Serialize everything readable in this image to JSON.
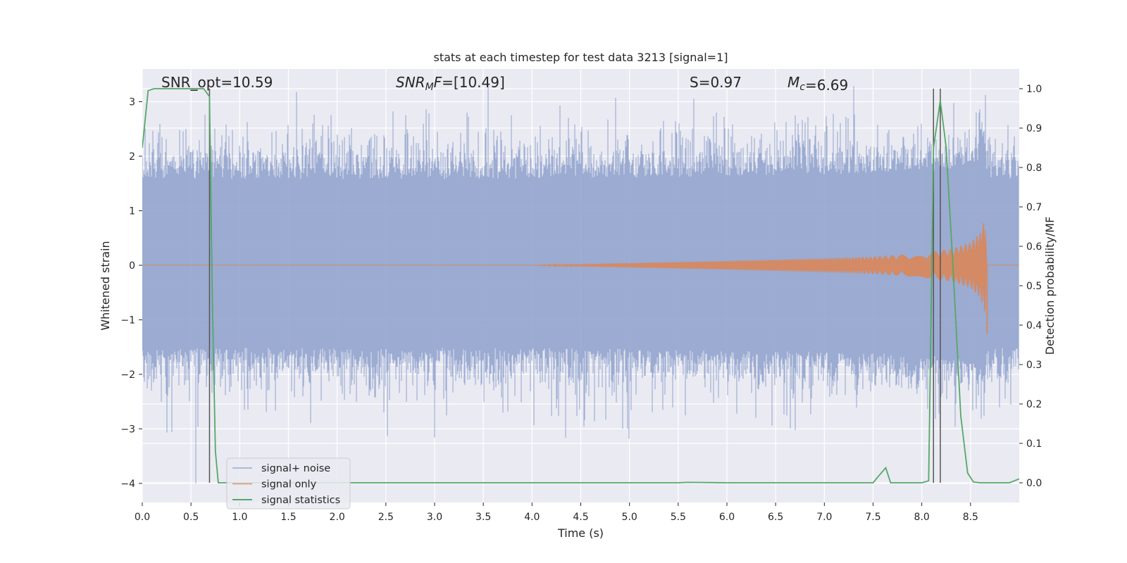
{
  "chart_data": {
    "type": "line",
    "title": "stats at each timestep for test data 3213 [signal=1]",
    "xlabel": "Time (s)",
    "ylabel": "Whitened strain",
    "y2label": "Detection probability/MF",
    "xlim": [
      0.0,
      9.0
    ],
    "ylim": [
      -4.35,
      3.6
    ],
    "y2lim": [
      -0.05,
      1.05
    ],
    "x_ticks": [
      0.0,
      0.5,
      1.0,
      1.5,
      2.0,
      2.5,
      3.0,
      3.5,
      4.0,
      4.5,
      5.0,
      5.5,
      6.0,
      6.5,
      7.0,
      7.5,
      8.0,
      8.5
    ],
    "x_tick_labels": [
      "0.0",
      "0.5",
      "1.0",
      "1.5",
      "2.0",
      "2.5",
      "3.0",
      "3.5",
      "4.0",
      "4.5",
      "5.0",
      "5.5",
      "6.0",
      "6.5",
      "7.0",
      "7.5",
      "8.0",
      "8.5"
    ],
    "y_ticks": [
      3,
      2,
      1,
      0,
      -1,
      -2,
      -3,
      -4
    ],
    "y_tick_labels": [
      "3",
      "2",
      "1",
      "0",
      "−1",
      "−2",
      "−3",
      "−4"
    ],
    "y2_ticks": [
      1.0,
      0.9,
      0.8,
      0.7,
      0.6,
      0.5,
      0.4,
      0.3,
      0.2,
      0.1,
      0.0
    ],
    "y2_tick_labels": [
      "1.0",
      "0.9",
      "0.8",
      "0.7",
      "0.6",
      "0.5",
      "0.4",
      "0.3",
      "0.2",
      "0.1",
      "0.0"
    ],
    "grid": true,
    "background": "#eaeaf2",
    "legend_position": "lower-left",
    "annotations": [
      {
        "label": "SNR_opt",
        "value": "=10.59"
      },
      {
        "label": "SNR",
        "sub": "M",
        "suffix": "F",
        "value": "=[10.49]"
      },
      {
        "label": "S",
        "value": "=0.97"
      },
      {
        "label": "M",
        "sub": "c",
        "value": "=6.69"
      }
    ],
    "vertical_lines_x": [
      0.69,
      8.12,
      8.19
    ],
    "series": [
      {
        "name": "signal+ noise",
        "color": "#8da0cb",
        "kind": "noise",
        "envelope_y": [
          -2.1,
          2.2
        ],
        "peak_y": [
          3.3,
          -4.0
        ],
        "peak_x": [
          3.55,
          0.55
        ]
      },
      {
        "name": "signal only",
        "color": "#dd8452",
        "kind": "chirp",
        "x": [
          0.0,
          4.0,
          5.0,
          6.0,
          7.0,
          7.5,
          8.0,
          8.3,
          8.5,
          8.6,
          8.65,
          8.67,
          9.0
        ],
        "amplitude": [
          0.0,
          0.0,
          0.04,
          0.08,
          0.13,
          0.16,
          0.22,
          0.3,
          0.42,
          0.6,
          0.88,
          0.0,
          0.0
        ],
        "negative_peak": [
          8.67,
          -1.25
        ]
      },
      {
        "name": "signal statistics",
        "color": "#55a868",
        "kind": "line",
        "axis": "right",
        "x": [
          0.0,
          0.06,
          0.12,
          0.5,
          0.63,
          0.69,
          0.72,
          0.75,
          0.78,
          5.0,
          5.5,
          5.6,
          6.0,
          7.5,
          7.55,
          7.63,
          7.68,
          8.0,
          8.07,
          8.12,
          8.19,
          8.25,
          8.32,
          8.4,
          8.47,
          8.53,
          8.6,
          8.7,
          8.9,
          9.0
        ],
        "y": [
          0.85,
          0.995,
          1.0,
          1.0,
          1.0,
          0.98,
          0.45,
          0.08,
          0.0,
          0.0,
          0.0,
          0.001,
          0.0,
          0.0,
          0.015,
          0.038,
          0.0,
          0.0,
          0.005,
          0.85,
          0.97,
          0.85,
          0.55,
          0.17,
          0.025,
          0.002,
          0.0,
          0.0,
          0.0,
          0.01
        ]
      }
    ]
  }
}
